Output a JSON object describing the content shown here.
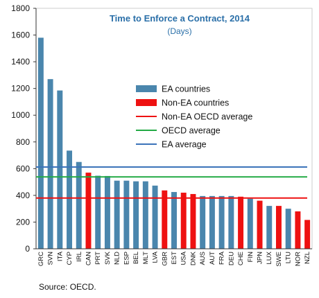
{
  "chart_data": {
    "type": "bar",
    "title": "Time to Enforce a Contract, 2014",
    "subtitle": "(Days)",
    "xlabel": "",
    "ylabel": "",
    "ylim": [
      0,
      1800
    ],
    "yticks": [
      0,
      200,
      400,
      600,
      800,
      1000,
      1200,
      1400,
      1600,
      1800
    ],
    "categories": [
      "GRC",
      "SVN",
      "ITA",
      "CYP",
      "IRL",
      "CAN",
      "PRT",
      "SVK",
      "NLD",
      "ESP",
      "BEL",
      "MLT",
      "LVA",
      "GBR",
      "EST",
      "USA",
      "DNK",
      "AUS",
      "AUT",
      "FRA",
      "DEU",
      "CHE",
      "FIN",
      "JPN",
      "LUX",
      "SWE",
      "LTU",
      "NOR",
      "NZL"
    ],
    "series": [
      {
        "name": "EA countries",
        "color": "#4a86ad",
        "values": [
          1580,
          1270,
          1185,
          735,
          650,
          null,
          547,
          545,
          510,
          510,
          505,
          505,
          473,
          null,
          425,
          null,
          null,
          395,
          395,
          395,
          395,
          null,
          375,
          null,
          321,
          null,
          300,
          null,
          null
        ]
      },
      {
        "name": "Non-EA countries",
        "color": "#ee1111",
        "values": [
          null,
          null,
          null,
          null,
          null,
          570,
          null,
          null,
          null,
          null,
          null,
          null,
          null,
          437,
          null,
          420,
          410,
          null,
          null,
          null,
          null,
          390,
          null,
          360,
          null,
          321,
          null,
          280,
          216
        ]
      }
    ],
    "reference_lines": [
      {
        "name": "Non-EA OECD average",
        "value": 380,
        "color": "#ee1111"
      },
      {
        "name": "OECD average",
        "value": 538,
        "color": "#22aa44"
      },
      {
        "name": "EA average",
        "value": 612,
        "color": "#3b73b9"
      }
    ],
    "legend_placement": "center",
    "grid": false,
    "source": "Source: OECD."
  }
}
